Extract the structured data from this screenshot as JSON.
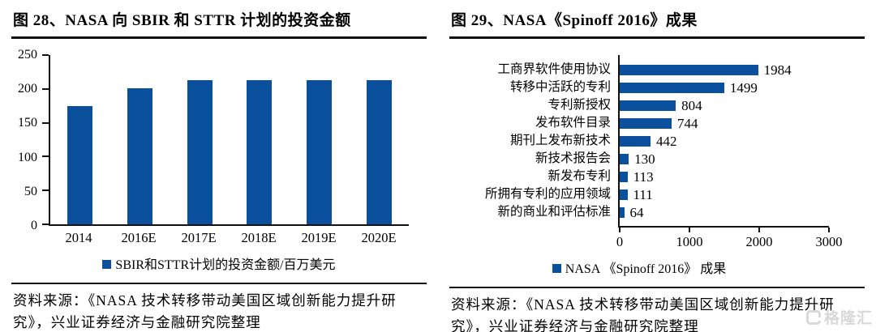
{
  "left_panel": {
    "title": "图 28、NASA 向 SBIR 和 STTR 计划的投资金额",
    "legend": "SBIR和STTR计划的投资金额/百万美元",
    "source": "资料来源：《NASA 技术转移带动美国区域创新能力提升研究》，兴业证券经济与金融研究院整理"
  },
  "right_panel": {
    "title": "图 29、NASA《Spinoff 2016》成果",
    "legend": "NASA 《Spinoff 2016》 成果",
    "source": "资料来源：《NASA 技术转移带动美国区域创新能力提升研究》，兴业证券经济与金融研究院整理"
  },
  "watermark": {
    "icon": "gelonghui-logo",
    "text": "格隆汇"
  },
  "colors": {
    "bar": "#0B509C",
    "axis": "#111111",
    "watermark": "#D8D8D8"
  },
  "chart_data": [
    {
      "type": "bar",
      "title": "图 28、NASA 向 SBIR 和 STTR 计划的投资金额",
      "categories": [
        "2014",
        "2016E",
        "2017E",
        "2018E",
        "2019E",
        "2020E"
      ],
      "values": [
        175,
        201,
        213,
        213,
        213,
        213
      ],
      "legend": [
        "SBIR和STTR计划的投资金额/百万美元"
      ],
      "xlabel": "",
      "ylabel": "",
      "ylim": [
        0,
        250
      ],
      "yticks": [
        0,
        50,
        100,
        150,
        200,
        250
      ],
      "grid": false,
      "legend_position": "bottom"
    },
    {
      "type": "bar-horizontal",
      "title": "图 29、NASA《Spinoff 2016》成果",
      "categories": [
        "工商界软件使用协议",
        "转移中活跃的专利",
        "专利新授权",
        "发布软件目录",
        "期刊上发布新技术",
        "新技术报告会",
        "新发布专利",
        "所拥有专利的应用领域",
        "新的商业和评估标准"
      ],
      "values": [
        1984,
        1499,
        804,
        744,
        442,
        130,
        113,
        111,
        64
      ],
      "data_labels": [
        1984,
        1499,
        804,
        744,
        442,
        130,
        113,
        111,
        64
      ],
      "legend": [
        "NASA 《Spinoff 2016》 成果"
      ],
      "xlabel": "",
      "ylabel": "",
      "xlim": [
        0,
        3000
      ],
      "xticks": [
        0,
        1000,
        2000,
        3000
      ],
      "grid": false,
      "legend_position": "bottom"
    }
  ]
}
